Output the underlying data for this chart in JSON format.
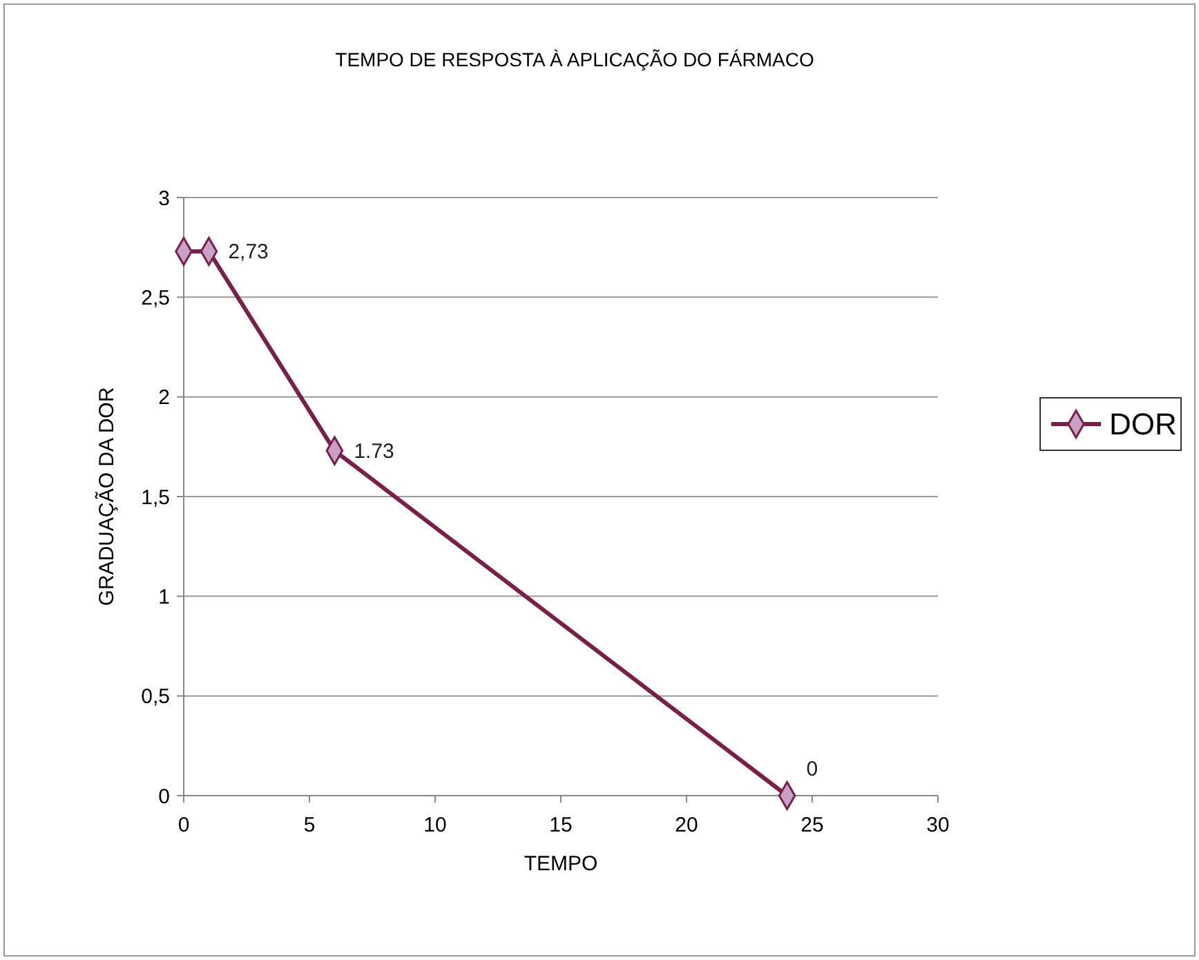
{
  "chart_data": {
    "type": "line",
    "title": "TEMPO DE RESPOSTA À APLICAÇÃO DO FÁRMACO",
    "xlabel": "TEMPO",
    "ylabel": "GRADUAÇÃO DA DOR",
    "x": [
      0,
      1,
      6,
      24
    ],
    "series": [
      {
        "name": "DOR",
        "color": "#7a2048",
        "values": [
          2.73,
          2.73,
          1.73,
          0
        ],
        "value_labels": [
          null,
          "2,73",
          "1.73",
          "0"
        ]
      }
    ],
    "xlim": [
      0,
      30
    ],
    "xticks": [
      0,
      5,
      10,
      15,
      20,
      25,
      30
    ],
    "ylim": [
      0,
      3
    ],
    "yticks": [
      0,
      {
        "value": 0.5,
        "label": "0,5"
      },
      1,
      {
        "value": 1.5,
        "label": "1,5"
      },
      2,
      {
        "value": 2.5,
        "label": "2,5"
      },
      3
    ],
    "grid": "y",
    "legend": "right",
    "marker": "diamond",
    "line_style": "solid"
  }
}
